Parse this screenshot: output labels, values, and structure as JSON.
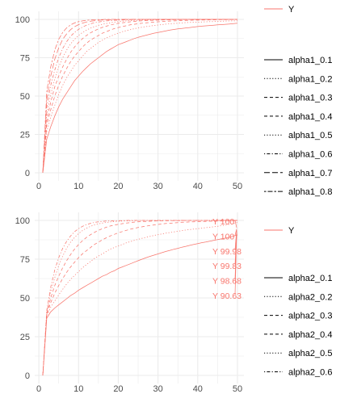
{
  "colors": {
    "series": "#F8766D",
    "grid": "#EBEBEB",
    "legend_key": "#000000"
  },
  "chart_data": [
    {
      "type": "line",
      "title": "",
      "xlabel": "",
      "ylabel": "",
      "xlim": [
        1,
        50
      ],
      "ylim": [
        0,
        100
      ],
      "x_ticks": [
        "0",
        "10",
        "20",
        "30",
        "40",
        "50"
      ],
      "y_ticks": [
        "0",
        "25",
        "50",
        "75",
        "100"
      ],
      "grid": true,
      "legend_position": "right",
      "legend": {
        "color_title": "",
        "color_entries": [
          "Y"
        ],
        "linetype_title": "",
        "linetype_entries": [
          "alpha1_0.1",
          "alpha1_0.2",
          "alpha1_0.3",
          "alpha1_0.4",
          "alpha1_0.5",
          "alpha1_0.6",
          "alpha1_0.7",
          "alpha1_0.8"
        ]
      },
      "x": [
        1,
        2,
        3,
        4,
        5,
        6,
        7,
        8,
        9,
        10,
        11,
        12,
        13,
        14,
        15,
        16,
        17,
        18,
        19,
        20,
        21,
        22,
        23,
        24,
        25,
        26,
        27,
        28,
        29,
        30,
        31,
        32,
        33,
        34,
        35,
        36,
        37,
        38,
        39,
        40,
        41,
        42,
        43,
        44,
        45,
        46,
        47,
        48,
        49,
        50
      ],
      "series": [
        {
          "name": "alpha1_0.1",
          "dash": "solid",
          "values": [
            0,
            22,
            30,
            37,
            43,
            48,
            52,
            56,
            60,
            63,
            66,
            68.5,
            71,
            73,
            75,
            77,
            79,
            80.5,
            82,
            83.5,
            84.5,
            85.5,
            86.5,
            87.5,
            88.3,
            89,
            89.7,
            90.3,
            91,
            91.5,
            92,
            92.5,
            93,
            93.4,
            93.8,
            94.1,
            94.4,
            94.7,
            95,
            95.3,
            95.6,
            95.8,
            96,
            96.2,
            96.4,
            96.6,
            96.8,
            97,
            97.2,
            97.5
          ]
        },
        {
          "name": "alpha1_0.2",
          "dash": "dotted",
          "values": [
            0,
            27,
            36,
            44,
            51,
            57,
            62,
            66,
            70,
            73,
            76,
            79,
            81,
            83,
            85,
            86.5,
            88,
            89,
            90,
            91,
            92,
            92.7,
            93.3,
            93.9,
            94.4,
            94.9,
            95.3,
            95.7,
            96,
            96.3,
            96.6,
            96.9,
            97.1,
            97.3,
            97.5,
            97.7,
            97.9,
            98,
            98.1,
            98.2,
            98.3,
            98.4,
            98.5,
            98.6,
            98.7,
            98.8,
            98.9,
            99,
            99,
            99
          ]
        },
        {
          "name": "alpha1_0.3",
          "dash": "dashed",
          "values": [
            0,
            31,
            41,
            50,
            57,
            63,
            68,
            72.5,
            76,
            79,
            82,
            84.5,
            86.5,
            88,
            89.5,
            91,
            92,
            93,
            94,
            94.7,
            95.3,
            95.9,
            96.4,
            96.8,
            97.2,
            97.5,
            97.8,
            98,
            98.2,
            98.4,
            98.6,
            98.8,
            98.9,
            99,
            99.1,
            99.2,
            99.3,
            99.4,
            99.5,
            99.5,
            99.6,
            99.6,
            99.7,
            99.7,
            99.8,
            99.8,
            99.8,
            99.9,
            99.9,
            99.9
          ]
        },
        {
          "name": "alpha1_0.4",
          "dash": "dashed",
          "values": [
            0,
            34,
            46,
            56,
            63,
            69,
            74,
            78.5,
            82,
            85,
            87.5,
            89.5,
            91.2,
            92.6,
            93.8,
            94.8,
            95.6,
            96.3,
            96.9,
            97.4,
            97.8,
            98.1,
            98.4,
            98.7,
            98.9,
            99.1,
            99.2,
            99.3,
            99.4,
            99.5,
            99.6,
            99.7,
            99.7,
            99.8,
            99.8,
            99.8,
            99.9,
            99.9,
            99.9,
            99.9,
            99.9,
            100,
            100,
            100,
            100,
            100,
            100,
            100,
            100,
            100
          ]
        },
        {
          "name": "alpha1_0.5",
          "dash": "dotted",
          "values": [
            0,
            38,
            51,
            61,
            69,
            75,
            80,
            84,
            87,
            89.5,
            91.5,
            93,
            94.3,
            95.3,
            96.1,
            96.8,
            97.3,
            97.8,
            98.2,
            98.5,
            98.8,
            99,
            99.2,
            99.3,
            99.4,
            99.5,
            99.6,
            99.7,
            99.7,
            99.8,
            99.8,
            99.9,
            99.9,
            99.9,
            99.9,
            100,
            100,
            100,
            100,
            100,
            100,
            100,
            100,
            100,
            100,
            100,
            100,
            100,
            100,
            100
          ]
        },
        {
          "name": "alpha1_0.6",
          "dash": "dotdash",
          "values": [
            0,
            43,
            57,
            67,
            75,
            81,
            85.5,
            89,
            91.5,
            93.5,
            95,
            96.2,
            97.1,
            97.8,
            98.3,
            98.7,
            99,
            99.2,
            99.4,
            99.5,
            99.6,
            99.7,
            99.8,
            99.8,
            99.9,
            99.9,
            99.9,
            100,
            100,
            100,
            100,
            100,
            100,
            100,
            100,
            100,
            100,
            100,
            100,
            100,
            100,
            100,
            100,
            100,
            100,
            100,
            100,
            100,
            100,
            100
          ]
        },
        {
          "name": "alpha1_0.7",
          "dash": "longdash",
          "values": [
            0,
            48,
            63,
            74,
            81.5,
            87,
            90.5,
            93.3,
            95.2,
            96.6,
            97.6,
            98.3,
            98.8,
            99.1,
            99.4,
            99.6,
            99.7,
            99.8,
            99.9,
            99.9,
            99.9,
            100,
            100,
            100,
            100,
            100,
            100,
            100,
            100,
            100,
            100,
            100,
            100,
            100,
            100,
            100,
            100,
            100,
            100,
            100,
            100,
            100,
            100,
            100,
            100,
            100,
            100,
            100,
            100,
            100
          ]
        },
        {
          "name": "alpha1_0.8",
          "dash": "twodash",
          "values": [
            0,
            53,
            69,
            80,
            87,
            91.5,
            94.5,
            96.4,
            97.7,
            98.5,
            99,
            99.4,
            99.6,
            99.8,
            99.9,
            99.9,
            100,
            100,
            100,
            100,
            100,
            100,
            100,
            100,
            100,
            100,
            100,
            100,
            100,
            100,
            100,
            100,
            100,
            100,
            100,
            100,
            100,
            100,
            100,
            100,
            100,
            100,
            100,
            100,
            100,
            100,
            100,
            100,
            100,
            100
          ]
        }
      ]
    },
    {
      "type": "line",
      "title": "",
      "xlabel": "",
      "ylabel": "",
      "xlim": [
        1,
        50
      ],
      "ylim": [
        0,
        100
      ],
      "x_ticks": [
        "0",
        "10",
        "20",
        "30",
        "40",
        "50"
      ],
      "y_ticks": [
        "0",
        "25",
        "50",
        "75",
        "100"
      ],
      "grid": true,
      "legend_position": "right",
      "legend": {
        "color_title": "",
        "color_entries": [
          "Y"
        ],
        "linetype_title": "",
        "linetype_entries": [
          "alpha2_0.1",
          "alpha2_0.2",
          "alpha2_0.3",
          "alpha2_0.4",
          "alpha2_0.5",
          "alpha2_0.6"
        ]
      },
      "annotations": [
        "Y 100",
        "Y 100",
        "Y 99.98",
        "Y 99.83",
        "Y 98.68",
        "Y 90.63"
      ],
      "x": [
        1,
        2,
        3,
        4,
        5,
        6,
        7,
        8,
        9,
        10,
        11,
        12,
        13,
        14,
        15,
        16,
        17,
        18,
        19,
        20,
        21,
        22,
        23,
        24,
        25,
        26,
        27,
        28,
        29,
        30,
        31,
        32,
        33,
        34,
        35,
        36,
        37,
        38,
        39,
        40,
        41,
        42,
        43,
        44,
        45,
        46,
        47,
        48,
        49,
        50
      ],
      "series": [
        {
          "name": "alpha2_0.1",
          "dash": "solid",
          "values": [
            0,
            37,
            41,
            43.5,
            45.5,
            47.5,
            49.5,
            51.5,
            53,
            55,
            56.5,
            58,
            59.5,
            61,
            62.5,
            64,
            65,
            66.5,
            67.5,
            69,
            70,
            71,
            72,
            73,
            74,
            75,
            76,
            76.8,
            77.6,
            78.4,
            79.2,
            80,
            80.7,
            81.4,
            82,
            82.7,
            83.3,
            83.9,
            84.5,
            85,
            85.6,
            86.1,
            86.6,
            87.1,
            87.6,
            88.1,
            88.6,
            89.1,
            89.9,
            90.63
          ]
        },
        {
          "name": "alpha2_0.2",
          "dash": "dotted",
          "values": [
            0,
            38,
            44,
            48,
            52,
            55.5,
            59,
            62,
            64.5,
            67,
            69.5,
            71.5,
            73.5,
            75.5,
            77,
            78.5,
            80,
            81.5,
            82.5,
            83.5,
            84.5,
            85.5,
            86.3,
            87.1,
            87.8,
            88.5,
            89.1,
            89.7,
            90.3,
            90.8,
            91.3,
            91.8,
            92.2,
            92.6,
            93,
            93.4,
            93.8,
            94.1,
            94.4,
            94.7,
            95,
            95.3,
            95.6,
            95.9,
            96.2,
            96.6,
            97,
            97.5,
            98,
            98.68
          ]
        },
        {
          "name": "alpha2_0.3",
          "dash": "dashed",
          "values": [
            0,
            39,
            47,
            53,
            58,
            62.5,
            66.5,
            70,
            73,
            76,
            78.5,
            80.5,
            82.5,
            84.5,
            86,
            87.5,
            88.8,
            90,
            91,
            92,
            92.8,
            93.6,
            94.3,
            94.9,
            95.4,
            95.9,
            96.3,
            96.7,
            97.1,
            97.4,
            97.7,
            98,
            98.2,
            98.4,
            98.6,
            98.8,
            98.9,
            99,
            99.1,
            99.2,
            99.3,
            99.4,
            99.5,
            99.55,
            99.6,
            99.65,
            99.7,
            99.75,
            99.8,
            99.83
          ]
        },
        {
          "name": "alpha2_0.4",
          "dash": "dashed",
          "values": [
            0,
            40,
            50,
            58,
            64,
            69.5,
            74,
            78,
            81.5,
            84.5,
            87,
            89,
            90.8,
            92.3,
            93.6,
            94.7,
            95.6,
            96.4,
            97,
            97.5,
            97.9,
            98.3,
            98.6,
            98.9,
            99.1,
            99.3,
            99.4,
            99.5,
            99.6,
            99.7,
            99.75,
            99.8,
            99.85,
            99.88,
            99.9,
            99.92,
            99.93,
            99.94,
            99.95,
            99.96,
            99.97,
            99.97,
            99.98,
            99.98,
            99.98,
            99.98,
            99.98,
            99.98,
            99.98,
            99.98
          ]
        },
        {
          "name": "alpha2_0.5",
          "dash": "dotted",
          "values": [
            0,
            41,
            54,
            63,
            71,
            77,
            82,
            86,
            89,
            91.5,
            93.5,
            95,
            96.2,
            97.1,
            97.8,
            98.3,
            98.7,
            99,
            99.3,
            99.5,
            99.6,
            99.7,
            99.8,
            99.85,
            99.9,
            99.93,
            99.95,
            99.96,
            99.97,
            99.98,
            99.99,
            99.99,
            100,
            100,
            100,
            100,
            100,
            100,
            100,
            100,
            100,
            100,
            100,
            100,
            100,
            100,
            100,
            100,
            100,
            100
          ]
        },
        {
          "name": "alpha2_0.6",
          "dash": "dotdash",
          "values": [
            0,
            42,
            57,
            68,
            76,
            82,
            86.5,
            90,
            92.7,
            94.7,
            96.2,
            97.3,
            98.1,
            98.7,
            99.1,
            99.4,
            99.6,
            99.7,
            99.8,
            99.9,
            99.9,
            100,
            100,
            100,
            100,
            100,
            100,
            100,
            100,
            100,
            100,
            100,
            100,
            100,
            100,
            100,
            100,
            100,
            100,
            100,
            100,
            100,
            100,
            100,
            100,
            100,
            100,
            100,
            100,
            100
          ]
        }
      ]
    }
  ]
}
